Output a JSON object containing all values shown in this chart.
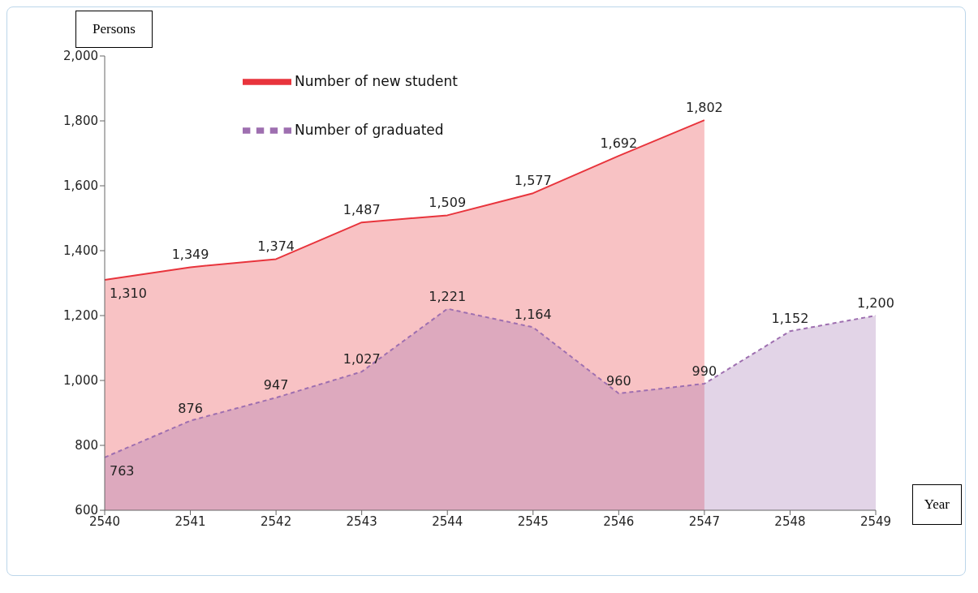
{
  "chart_data": {
    "type": "area",
    "xlabel": "Year",
    "ylabel": "Persons",
    "categories": [
      "2540",
      "2541",
      "2542",
      "2543",
      "2544",
      "2545",
      "2546",
      "2547",
      "2548",
      "2549"
    ],
    "series": [
      {
        "name": "Number of new student",
        "color": "#e8343c",
        "line_style": "solid",
        "values": [
          1310,
          1349,
          1374,
          1487,
          1509,
          1577,
          1692,
          1802,
          null,
          null
        ],
        "value_labels": [
          "1,310",
          "1,349",
          "1,374",
          "1,487",
          "1,509",
          "1,577",
          "1,692",
          "1,802",
          null,
          null
        ]
      },
      {
        "name": "Number of graduated",
        "color": "#9e6fb0",
        "line_style": "dashed",
        "values": [
          763,
          876,
          947,
          1027,
          1221,
          1164,
          960,
          990,
          1152,
          1200
        ],
        "value_labels": [
          "763",
          "876",
          "947",
          "1,027",
          "1,221",
          "1,164",
          "960",
          "990",
          "1,152",
          "1,200"
        ]
      }
    ],
    "ylim": [
      600,
      2000
    ],
    "yticks": [
      600,
      800,
      {
        "value": 1000,
        "label": "1,000"
      },
      {
        "value": 1200,
        "label": "1,200"
      },
      {
        "value": 1400,
        "label": "1,400"
      },
      {
        "value": 1600,
        "label": "1,600"
      },
      {
        "value": 1800,
        "label": "1,800"
      },
      {
        "value": 2000,
        "label": "2,000"
      }
    ],
    "grid": false,
    "legend": "top",
    "marker": "none"
  }
}
